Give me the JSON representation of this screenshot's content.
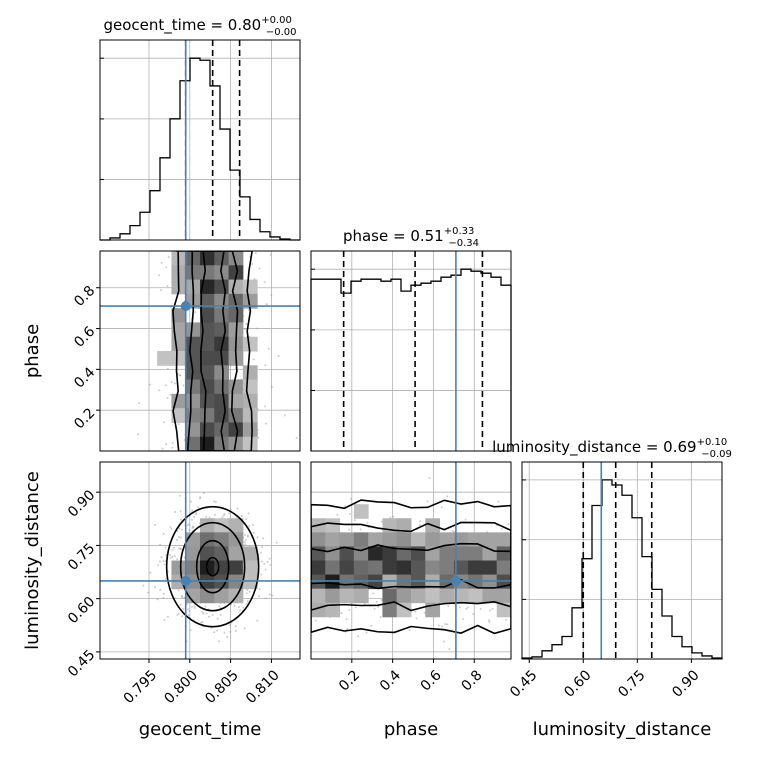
{
  "chart_data": {
    "type": "corner",
    "parameters": [
      {
        "name": "geocent_time",
        "label": "geocent_time",
        "range": [
          0.789,
          0.8135
        ],
        "ticks": [
          0.795,
          0.8,
          0.805,
          0.81
        ],
        "tick_labels": [
          "0.795",
          "0.800",
          "0.805",
          "0.810"
        ],
        "truth": 0.7995,
        "quantiles": [
          0.7995,
          0.8028,
          0.8061
        ],
        "title": {
          "text": "geocent_time = 0.80",
          "plus": "+0.00",
          "minus": "−0.00"
        },
        "hist_edges_start": 0.789,
        "hist_bin_width": 0.001225,
        "hist_counts": [
          0,
          2,
          6,
          14,
          27,
          48,
          80,
          118,
          155,
          177,
          175,
          150,
          108,
          68,
          42,
          20,
          8,
          3,
          1,
          0
        ]
      },
      {
        "name": "phase",
        "label": "phase",
        "range": [
          0.0,
          0.98
        ],
        "ticks": [
          0.2,
          0.4,
          0.6,
          0.8
        ],
        "tick_labels": [
          "0.2",
          "0.4",
          "0.6",
          "0.8"
        ],
        "truth": 0.71,
        "quantiles": [
          0.16,
          0.51,
          0.84
        ],
        "title": {
          "text": "phase = 0.51",
          "plus": "+0.33",
          "minus": "−0.34"
        },
        "hist_edges_start": 0.0,
        "hist_bin_width": 0.049,
        "hist_counts": [
          86,
          86,
          86,
          79,
          85,
          86,
          86,
          85,
          86,
          80,
          83,
          84,
          85,
          87,
          88,
          91,
          90,
          89,
          87,
          83
        ]
      },
      {
        "name": "luminosity_distance",
        "label": "luminosity_distance",
        "range": [
          0.43,
          0.985
        ],
        "ticks": [
          0.45,
          0.6,
          0.75,
          0.9
        ],
        "tick_labels": [
          "0.45",
          "0.60",
          "0.75",
          "0.90"
        ],
        "truth": 0.65,
        "quantiles": [
          0.6,
          0.69,
          0.79
        ],
        "title": {
          "text": "luminosity_distance = 0.69",
          "plus": "+0.10",
          "minus": "−0.09"
        },
        "hist_edges_start": 0.43,
        "hist_bin_width": 0.02775,
        "hist_counts": [
          1,
          2,
          8,
          14,
          22,
          50,
          98,
          150,
          175,
          170,
          160,
          138,
          100,
          68,
          42,
          22,
          12,
          6,
          3,
          1
        ]
      }
    ],
    "pairs": [
      {
        "x": "geocent_time",
        "y": "phase",
        "contour_levels": [
          0.39,
          0.86
        ],
        "notes": "posterior samples uniform in phase, concentrated in geocent_time around 0.8028"
      },
      {
        "x": "geocent_time",
        "y": "luminosity_distance",
        "contour_levels": [
          0.39,
          0.86
        ],
        "center": [
          0.8028,
          0.69
        ]
      },
      {
        "x": "phase",
        "y": "luminosity_distance",
        "contour_levels": [
          0.39,
          0.86
        ],
        "notes": "banded structure across phase around luminosity_distance 0.69"
      }
    ],
    "truth_color": "#4682b4",
    "grid": true
  }
}
